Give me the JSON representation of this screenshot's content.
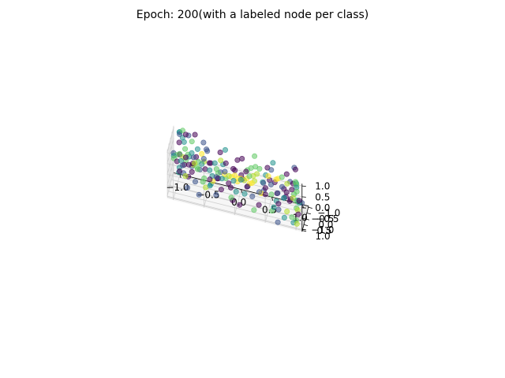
{
  "chart_data": {
    "type": "scatter",
    "title": "Epoch: 200(with a labeled node per class)",
    "projection": "3d",
    "grid": true,
    "legend": "none",
    "colormap": "viridis",
    "xlim": [
      -1.1,
      1.1
    ],
    "ylim": [
      -1.1,
      1.1
    ],
    "zlim": [
      -1.1,
      1.1
    ],
    "x_ticks": [
      "−1.0",
      "−0.5",
      "0.0",
      "0.5",
      "1.0"
    ],
    "y_ticks": [
      "−1.0",
      "−0.5",
      "0.0",
      "0.5",
      "1.0"
    ],
    "z_ticks": [
      "−1.0",
      "−0.5",
      "0.0",
      "0.5",
      "1.0"
    ],
    "x_tick_values": [
      -1.0,
      -0.5,
      0.0,
      0.5,
      1.0
    ],
    "y_tick_values": [
      -1.0,
      -0.5,
      0.0,
      0.5,
      1.0
    ],
    "z_tick_values": [
      -1.0,
      -0.5,
      0.0,
      0.5,
      1.0
    ],
    "class_colors": [
      "#440154",
      "#3b528b",
      "#21918c",
      "#5ec962",
      "#b5de2b",
      "#fde725"
    ],
    "points": [
      {
        "x": 0.95,
        "y": -1.0,
        "z": -1.0,
        "c": 2
      },
      {
        "x": 0.95,
        "y": -1.0,
        "z": -0.9,
        "c": 0
      },
      {
        "x": 0.9,
        "y": -1.0,
        "z": -0.95,
        "c": 3
      },
      {
        "x": 1.0,
        "y": -0.95,
        "z": -0.95,
        "c": 1
      },
      {
        "x": 0.85,
        "y": -1.0,
        "z": -0.85,
        "c": 4
      },
      {
        "x": 0.8,
        "y": -0.95,
        "z": -1.0,
        "c": 0
      },
      {
        "x": 0.7,
        "y": -1.0,
        "z": -0.95,
        "c": 2
      },
      {
        "x": 0.6,
        "y": -1.0,
        "z": -0.8,
        "c": 1
      },
      {
        "x": 0.75,
        "y": -0.9,
        "z": -0.6,
        "c": 0
      },
      {
        "x": 0.5,
        "y": -0.95,
        "z": -0.9,
        "c": 3
      },
      {
        "x": 0.4,
        "y": -1.0,
        "z": -0.7,
        "c": 0
      },
      {
        "x": 0.3,
        "y": -1.0,
        "z": -0.95,
        "c": 1
      },
      {
        "x": 0.1,
        "y": -1.0,
        "z": -0.85,
        "c": 0
      },
      {
        "x": 0.0,
        "y": -1.0,
        "z": -0.6,
        "c": 2
      },
      {
        "x": -0.2,
        "y": -1.0,
        "z": -0.9,
        "c": 0
      },
      {
        "x": -0.4,
        "y": -1.0,
        "z": -0.75,
        "c": 1
      },
      {
        "x": -0.6,
        "y": -1.0,
        "z": -0.95,
        "c": 3
      },
      {
        "x": -0.8,
        "y": -1.0,
        "z": -0.8,
        "c": 0
      },
      {
        "x": -1.0,
        "y": -1.0,
        "z": -0.9,
        "c": 0
      },
      {
        "x": -1.0,
        "y": -0.95,
        "z": -0.7,
        "c": 2
      },
      {
        "x": -0.95,
        "y": -1.0,
        "z": -0.6,
        "c": 1
      },
      {
        "x": -0.9,
        "y": -0.9,
        "z": -1.0,
        "c": 4
      },
      {
        "x": -0.85,
        "y": -1.0,
        "z": -0.5,
        "c": 0
      },
      {
        "x": -0.7,
        "y": -0.9,
        "z": -0.55,
        "c": 3
      },
      {
        "x": -0.5,
        "y": -0.85,
        "z": -0.85,
        "c": 0
      },
      {
        "x": -0.3,
        "y": -0.8,
        "z": -0.65,
        "c": 2
      },
      {
        "x": -1.0,
        "y": -1.0,
        "z": 0.9,
        "c": 2
      },
      {
        "x": -1.0,
        "y": -1.0,
        "z": 0.8,
        "c": 1
      },
      {
        "x": -0.95,
        "y": -1.0,
        "z": 1.0,
        "c": 3
      },
      {
        "x": -1.0,
        "y": -0.9,
        "z": 0.95,
        "c": 2
      },
      {
        "x": -0.9,
        "y": -1.0,
        "z": 0.85,
        "c": 0
      },
      {
        "x": -0.95,
        "y": -0.95,
        "z": 0.7,
        "c": 2
      },
      {
        "x": -0.85,
        "y": -0.9,
        "z": 0.9,
        "c": 1
      },
      {
        "x": -0.8,
        "y": -1.0,
        "z": 0.6,
        "c": 3
      },
      {
        "x": -0.75,
        "y": -1.0,
        "z": 0.95,
        "c": 0
      },
      {
        "x": -1.0,
        "y": -0.85,
        "z": 0.5,
        "c": 0
      },
      {
        "x": -0.9,
        "y": -0.8,
        "z": 0.3,
        "c": 3
      },
      {
        "x": -0.7,
        "y": -0.85,
        "z": 0.4,
        "c": 2
      },
      {
        "x": -0.6,
        "y": -0.8,
        "z": 0.8,
        "c": 1
      },
      {
        "x": -0.8,
        "y": -0.95,
        "z": 0.1,
        "c": 2
      },
      {
        "x": -1.0,
        "y": -1.0,
        "z": -0.1,
        "c": 3
      },
      {
        "x": -0.9,
        "y": -1.0,
        "z": -0.2,
        "c": 0
      },
      {
        "x": -0.75,
        "y": -0.9,
        "z": -0.3,
        "c": 4
      },
      {
        "x": -0.6,
        "y": -0.9,
        "z": 0.0,
        "c": 1
      },
      {
        "x": -0.5,
        "y": -0.8,
        "z": -0.4,
        "c": 2
      },
      {
        "x": -1.0,
        "y": 1.0,
        "z": 1.0,
        "c": 1
      },
      {
        "x": -0.95,
        "y": 1.0,
        "z": 0.95,
        "c": 3
      },
      {
        "x": -1.0,
        "y": 0.95,
        "z": 0.85,
        "c": 2
      },
      {
        "x": -0.9,
        "y": 1.0,
        "z": 1.0,
        "c": 0
      },
      {
        "x": -0.85,
        "y": 0.95,
        "z": 0.9,
        "c": 4
      },
      {
        "x": -1.0,
        "y": 0.9,
        "z": 0.7,
        "c": 3
      },
      {
        "x": -0.95,
        "y": 0.9,
        "z": 0.6,
        "c": 0
      },
      {
        "x": -0.8,
        "y": 1.0,
        "z": 0.8,
        "c": 3
      },
      {
        "x": -0.75,
        "y": 0.9,
        "z": 0.95,
        "c": 2
      },
      {
        "x": -0.7,
        "y": 1.0,
        "z": 0.6,
        "c": 1
      },
      {
        "x": -0.6,
        "y": 0.95,
        "z": 0.85,
        "c": 3
      },
      {
        "x": -0.5,
        "y": 1.0,
        "z": 0.95,
        "c": 4
      },
      {
        "x": -0.55,
        "y": 0.8,
        "z": 0.7,
        "c": 2
      },
      {
        "x": -0.4,
        "y": 0.9,
        "z": 0.9,
        "c": 0
      },
      {
        "x": -0.3,
        "y": 1.0,
        "z": 0.75,
        "c": 3
      },
      {
        "x": -0.2,
        "y": 0.85,
        "z": 0.95,
        "c": 2
      },
      {
        "x": 0.0,
        "y": 1.0,
        "z": 0.9,
        "c": 0
      },
      {
        "x": 0.2,
        "y": 0.9,
        "z": 1.0,
        "c": 3
      },
      {
        "x": -0.9,
        "y": 0.6,
        "z": 0.5,
        "c": 2
      },
      {
        "x": -0.85,
        "y": 0.5,
        "z": 0.3,
        "c": 0
      },
      {
        "x": -0.7,
        "y": 0.5,
        "z": 0.4,
        "c": 4
      },
      {
        "x": -0.6,
        "y": 0.4,
        "z": 0.2,
        "c": 1
      },
      {
        "x": -0.8,
        "y": 0.3,
        "z": 0.7,
        "c": 3
      },
      {
        "x": 1.0,
        "y": 1.0,
        "z": 1.0,
        "c": 2
      },
      {
        "x": 0.95,
        "y": 1.0,
        "z": 0.95,
        "c": 0
      },
      {
        "x": 1.0,
        "y": 0.95,
        "z": 0.9,
        "c": 3
      },
      {
        "x": 0.9,
        "y": 1.0,
        "z": 1.0,
        "c": 1
      },
      {
        "x": 1.0,
        "y": 0.9,
        "z": 0.75,
        "c": 2
      },
      {
        "x": 0.85,
        "y": 0.95,
        "z": 0.85,
        "c": 4
      },
      {
        "x": 0.8,
        "y": 1.0,
        "z": 0.6,
        "c": 0
      },
      {
        "x": 1.0,
        "y": 0.8,
        "z": 0.5,
        "c": 3
      },
      {
        "x": 0.7,
        "y": 0.9,
        "z": 0.95,
        "c": 5
      },
      {
        "x": 0.65,
        "y": 1.0,
        "z": 0.8,
        "c": 0
      },
      {
        "x": 0.5,
        "y": 0.95,
        "z": 1.0,
        "c": 2
      },
      {
        "x": 0.3,
        "y": 1.0,
        "z": 0.85,
        "c": 4
      },
      {
        "x": 0.95,
        "y": 0.7,
        "z": 0.3,
        "c": 3
      },
      {
        "x": 1.0,
        "y": 0.6,
        "z": 0.0,
        "c": 2
      },
      {
        "x": 0.9,
        "y": 0.8,
        "z": 0.1,
        "c": 0
      },
      {
        "x": 1.0,
        "y": 0.9,
        "z": -0.2,
        "c": 3
      },
      {
        "x": 0.85,
        "y": 1.0,
        "z": -0.4,
        "c": 4
      },
      {
        "x": 1.0,
        "y": 1.0,
        "z": -0.7,
        "c": 3
      },
      {
        "x": 0.95,
        "y": 0.9,
        "z": -0.9,
        "c": 2
      },
      {
        "x": 1.0,
        "y": 0.75,
        "z": -1.0,
        "c": 4
      },
      {
        "x": 0.8,
        "y": 0.85,
        "z": -0.8,
        "c": 2
      },
      {
        "x": 0.7,
        "y": 1.0,
        "z": -1.0,
        "c": 1
      },
      {
        "x": 0.6,
        "y": 0.9,
        "z": -0.6,
        "c": 3
      },
      {
        "x": 1.0,
        "y": 0.5,
        "z": -0.5,
        "c": 4
      },
      {
        "x": 0.9,
        "y": 0.4,
        "z": -0.95,
        "c": 3
      },
      {
        "x": 1.0,
        "y": 0.3,
        "z": -0.8,
        "c": 0
      },
      {
        "x": 0.0,
        "y": 0.0,
        "z": 0.0,
        "c": 5
      },
      {
        "x": 0.05,
        "y": 0.05,
        "z": 0.05,
        "c": 5
      },
      {
        "x": -0.05,
        "y": 0.0,
        "z": 0.1,
        "c": 5
      },
      {
        "x": 0.1,
        "y": -0.05,
        "z": -0.05,
        "c": 4
      },
      {
        "x": 0.0,
        "y": 0.1,
        "z": -0.1,
        "c": 5
      },
      {
        "x": -0.1,
        "y": 0.1,
        "z": 0.05,
        "c": 5
      },
      {
        "x": 0.15,
        "y": 0.1,
        "z": 0.15,
        "c": 5
      },
      {
        "x": -0.15,
        "y": -0.1,
        "z": -0.05,
        "c": 4
      },
      {
        "x": 0.2,
        "y": 0.2,
        "z": 0.0,
        "c": 5
      },
      {
        "x": -0.2,
        "y": 0.3,
        "z": 0.2,
        "c": 5
      },
      {
        "x": 0.3,
        "y": -0.2,
        "z": 0.3,
        "c": 4
      },
      {
        "x": -0.4,
        "y": 0.2,
        "z": -0.3,
        "c": 5
      },
      {
        "x": 0.4,
        "y": 0.4,
        "z": -0.2,
        "c": 5
      },
      {
        "x": -0.3,
        "y": -0.4,
        "z": 0.4,
        "c": 4
      },
      {
        "x": 0.5,
        "y": 0.1,
        "z": 0.5,
        "c": 5
      },
      {
        "x": -0.6,
        "y": -0.2,
        "z": 0.6,
        "c": 5
      },
      {
        "x": 0.3,
        "y": 0.6,
        "z": 0.4,
        "c": 4
      },
      {
        "x": 0.6,
        "y": -0.5,
        "z": 0.1,
        "c": 5
      },
      {
        "x": -0.5,
        "y": 0.5,
        "z": -0.5,
        "c": 4
      },
      {
        "x": 0.2,
        "y": -0.6,
        "z": -0.4,
        "c": 5
      },
      {
        "x": -0.2,
        "y": -0.1,
        "z": 0.5,
        "c": 0
      },
      {
        "x": 0.25,
        "y": 0.3,
        "z": -0.5,
        "c": 1
      },
      {
        "x": -0.3,
        "y": 0.4,
        "z": 0.0,
        "c": 0
      },
      {
        "x": 0.4,
        "y": -0.3,
        "z": -0.1,
        "c": 1
      },
      {
        "x": 0.1,
        "y": 0.5,
        "z": 0.3,
        "c": 0
      },
      {
        "x": -0.45,
        "y": 0.1,
        "z": -0.6,
        "c": 2
      },
      {
        "x": 0.55,
        "y": 0.2,
        "z": 0.2,
        "c": 1
      },
      {
        "x": -0.1,
        "y": -0.5,
        "z": 0.1,
        "c": 0
      },
      {
        "x": 0.35,
        "y": -0.05,
        "z": 0.65,
        "c": 3
      },
      {
        "x": -0.55,
        "y": -0.35,
        "z": -0.15,
        "c": 0
      },
      {
        "x": 0.65,
        "y": 0.45,
        "z": -0.35,
        "c": 2
      },
      {
        "x": -0.25,
        "y": 0.65,
        "z": 0.45,
        "c": 1
      },
      {
        "x": 0.05,
        "y": -0.35,
        "z": 0.75,
        "c": 0
      },
      {
        "x": -0.65,
        "y": 0.35,
        "z": 0.25,
        "c": 3
      },
      {
        "x": 0.45,
        "y": -0.65,
        "z": 0.45,
        "c": 0
      },
      {
        "x": -0.35,
        "y": 0.55,
        "z": 0.75,
        "c": 2
      },
      {
        "x": 0.75,
        "y": -0.15,
        "z": -0.45,
        "c": 1
      },
      {
        "x": -0.05,
        "y": 0.75,
        "z": -0.65,
        "c": 0
      },
      {
        "x": 0.15,
        "y": -0.75,
        "z": -0.2,
        "c": 3
      },
      {
        "x": -0.75,
        "y": -0.55,
        "z": 0.15,
        "c": 1
      },
      {
        "x": 0.55,
        "y": 0.65,
        "z": 0.65,
        "c": 0
      },
      {
        "x": -0.45,
        "y": -0.65,
        "z": -0.55,
        "c": 2
      },
      {
        "x": 0.8,
        "y": 0.1,
        "z": 0.8,
        "c": 0
      },
      {
        "x": -0.1,
        "y": 0.2,
        "z": -0.85,
        "c": 3
      },
      {
        "x": 0.2,
        "y": 0.8,
        "z": 0.2,
        "c": 1
      },
      {
        "x": -0.8,
        "y": 0.15,
        "z": -0.4,
        "c": 0
      },
      {
        "x": 0.1,
        "y": -0.2,
        "z": -0.75,
        "c": 2
      },
      {
        "x": 0.6,
        "y": -0.8,
        "z": -0.7,
        "c": 0
      },
      {
        "x": -0.6,
        "y": 0.7,
        "z": -0.8,
        "c": 1
      },
      {
        "x": 0.3,
        "y": 0.3,
        "z": 0.9,
        "c": 3
      },
      {
        "x": -0.3,
        "y": -0.25,
        "z": 0.85,
        "c": 0
      },
      {
        "x": 0.0,
        "y": 0.6,
        "z": -0.3,
        "c": 2
      },
      {
        "x": 0.45,
        "y": 0.55,
        "z": 0.05,
        "c": 1
      },
      {
        "x": -0.15,
        "y": -0.7,
        "z": -0.9,
        "c": 0
      },
      {
        "x": 0.7,
        "y": -0.35,
        "z": 0.35,
        "c": 3
      },
      {
        "x": -0.7,
        "y": -0.1,
        "z": -0.7,
        "c": 1
      },
      {
        "x": 0.35,
        "y": 0.15,
        "z": -0.9,
        "c": 0
      },
      {
        "x": -0.4,
        "y": 0.85,
        "z": -0.1,
        "c": 2
      },
      {
        "x": 0.85,
        "y": -0.6,
        "z": -0.25,
        "c": 0
      },
      {
        "x": -0.85,
        "y": 0.75,
        "z": 0.05,
        "c": 1
      },
      {
        "x": 0.25,
        "y": -0.45,
        "z": 0.95,
        "c": 3
      },
      {
        "x": -0.25,
        "y": 0.45,
        "z": -0.45,
        "c": 0
      },
      {
        "x": 0.6,
        "y": 0.3,
        "z": -0.75,
        "c": 2
      },
      {
        "x": -0.55,
        "y": -0.75,
        "z": 0.55,
        "c": 1
      },
      {
        "x": 0.9,
        "y": -0.8,
        "z": 0.6,
        "c": 0
      },
      {
        "x": -0.15,
        "y": 0.95,
        "z": 0.4,
        "c": 3
      },
      {
        "x": 0.5,
        "y": -0.9,
        "z": 0.25,
        "c": 1
      },
      {
        "x": -0.95,
        "y": 0.25,
        "z": -0.25,
        "c": 2
      },
      {
        "x": 0.15,
        "y": 0.35,
        "z": 0.6,
        "c": 0
      },
      {
        "x": -0.35,
        "y": -0.55,
        "z": -0.3,
        "c": 3
      },
      {
        "x": 0.75,
        "y": 0.6,
        "z": 0.45,
        "c": 1
      },
      {
        "x": -0.65,
        "y": 0.6,
        "z": 0.85,
        "c": 0
      },
      {
        "x": 0.4,
        "y": -0.1,
        "z": 0.05,
        "c": 2
      },
      {
        "x": -0.05,
        "y": -0.85,
        "z": 0.35,
        "c": 0
      },
      {
        "x": 0.95,
        "y": 0.2,
        "z": 0.6,
        "c": 3
      },
      {
        "x": -0.5,
        "y": 0.0,
        "z": 0.9,
        "c": 1
      },
      {
        "x": 0.05,
        "y": 0.45,
        "z": -0.95,
        "c": 0
      },
      {
        "x": -0.9,
        "y": -0.45,
        "z": 0.8,
        "c": 2
      },
      {
        "x": 0.65,
        "y": -0.25,
        "z": -0.85,
        "c": 0
      },
      {
        "x": -0.2,
        "y": 0.25,
        "z": 0.3,
        "c": 1
      },
      {
        "x": 0.3,
        "y": 0.75,
        "z": -0.85,
        "c": 3
      },
      {
        "x": -0.75,
        "y": -0.3,
        "z": 0.0,
        "c": 0
      },
      {
        "x": 0.55,
        "y": -0.45,
        "z": 0.85,
        "c": 2
      },
      {
        "x": -0.35,
        "y": 0.1,
        "z": -0.95,
        "c": 1
      },
      {
        "x": 0.8,
        "y": 0.35,
        "z": -0.1,
        "c": 0
      },
      {
        "x": -0.6,
        "y": -0.6,
        "z": -0.9,
        "c": 3
      },
      {
        "x": 0.1,
        "y": 0.9,
        "z": 0.7,
        "c": 0
      },
      {
        "x": -0.25,
        "y": -0.9,
        "z": 0.65,
        "c": 2
      },
      {
        "x": 0.7,
        "y": 0.75,
        "z": -0.55,
        "c": 1
      },
      {
        "x": -0.45,
        "y": 0.3,
        "z": 0.55,
        "c": 0
      },
      {
        "x": 0.2,
        "y": -0.3,
        "z": 0.45,
        "c": 3
      },
      {
        "x": -0.8,
        "y": 0.45,
        "z": -0.75,
        "c": 1
      },
      {
        "x": 0.45,
        "y": 0.05,
        "z": -0.4,
        "c": 0
      },
      {
        "x": -0.1,
        "y": -0.6,
        "z": -0.5,
        "c": 2
      },
      {
        "x": 0.9,
        "y": -0.4,
        "z": 0.9,
        "c": 1
      },
      {
        "x": -0.3,
        "y": 0.7,
        "z": 0.15,
        "c": 0
      }
    ]
  }
}
